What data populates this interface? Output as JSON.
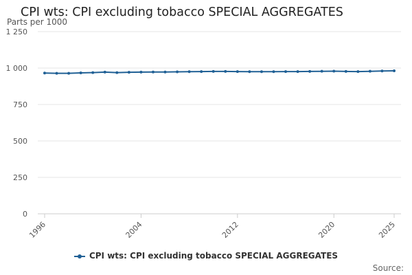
{
  "chart_data": {
    "type": "line",
    "title": "CPI wts: CPI excluding tobacco SPECIAL AGGREGATES",
    "ylabel": "Parts per 1000",
    "ylim": [
      0,
      1250
    ],
    "yticks": [
      0,
      250,
      500,
      750,
      1000,
      1250
    ],
    "ytick_labels": [
      "0",
      "250",
      "500",
      "750",
      "1 000",
      "1 250"
    ],
    "xlim": [
      1996,
      2025
    ],
    "xticks": [
      1996,
      2004,
      2012,
      2020,
      2025
    ],
    "xtick_labels": [
      "1996",
      "2004",
      "2012",
      "2020",
      "2025"
    ],
    "grid": true,
    "legend_position": "bottom",
    "color": "#206095",
    "series": [
      {
        "name": "CPI wts: CPI excluding tobacco SPECIAL AGGREGATES",
        "x": [
          1996,
          1997,
          1998,
          1999,
          2000,
          2001,
          2002,
          2003,
          2004,
          2005,
          2006,
          2007,
          2008,
          2009,
          2010,
          2011,
          2012,
          2013,
          2014,
          2015,
          2016,
          2017,
          2018,
          2019,
          2020,
          2021,
          2022,
          2023,
          2024,
          2025
        ],
        "values": [
          966,
          964,
          964,
          967,
          969,
          972,
          969,
          971,
          972,
          973,
          973,
          974,
          975,
          976,
          977,
          977,
          976,
          975,
          975,
          975,
          976,
          976,
          977,
          978,
          979,
          977,
          976,
          978,
          980,
          981
        ]
      }
    ]
  },
  "credits": "Source:"
}
